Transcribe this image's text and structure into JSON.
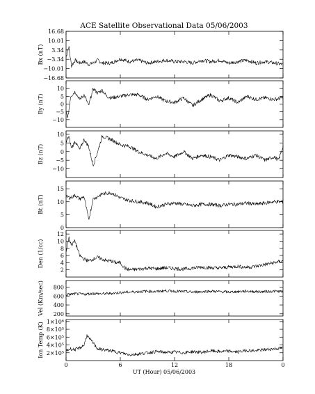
{
  "chart_data": {
    "type": "line",
    "title": "ACE Satellite Observational Data   05/06/2003",
    "xlabel": "UT (Hour)   05/06/2003",
    "x_ticks": [
      "0",
      "6",
      "12",
      "18",
      "0"
    ],
    "xlim": [
      0,
      24
    ],
    "panels": [
      {
        "name": "bx",
        "ylabel": "Bx (nT)",
        "ylim": [
          -16.68,
          16.68
        ],
        "y_ticks": [
          16.68,
          10.01,
          3.34,
          -3.34,
          -10.01,
          -16.68
        ],
        "y_tick_labels": [
          "16.68",
          "10.01",
          "3.34",
          "−3.34",
          "−10.01",
          "−16.68"
        ],
        "series": [
          {
            "x": [
              0,
              0.3,
              0.6,
              1,
              1.5,
              2,
              2.5,
              3,
              3.5,
              4,
              5,
              6,
              7,
              8,
              9,
              10,
              11,
              12,
              13,
              14,
              15,
              16,
              17,
              18,
              19,
              20,
              21,
              22,
              23,
              24
            ],
            "y": [
              -2,
              6,
              -8,
              -4,
              -6,
              -5,
              -7,
              -6,
              -4,
              -6,
              -6,
              -3,
              -5,
              -4,
              -6,
              -5,
              -4,
              -5,
              -5,
              -6,
              -4,
              -5,
              -4,
              -6,
              -5,
              -4,
              -6,
              -5,
              -6,
              -7
            ]
          }
        ]
      },
      {
        "name": "by",
        "ylabel": "By (nT)",
        "ylim": [
          -15,
          15
        ],
        "y_ticks": [
          10,
          5,
          0,
          -5,
          -10
        ],
        "y_tick_labels": [
          "10",
          "5",
          "0",
          "−5",
          "−10"
        ],
        "series": [
          {
            "x": [
              0,
              0.2,
              0.5,
              1,
              1.5,
              2,
              2.5,
              3,
              3.5,
              4,
              4.5,
              5,
              6,
              7,
              8,
              9,
              10,
              11,
              12,
              13,
              14,
              15,
              16,
              17,
              18,
              19,
              20,
              21,
              22,
              23,
              24
            ],
            "y": [
              -5,
              -9,
              5,
              8,
              3,
              6,
              -1,
              10,
              7,
              9,
              5,
              4,
              5,
              6,
              6,
              3,
              5,
              2,
              1,
              4,
              -1,
              3,
              6,
              2,
              4,
              1,
              5,
              3,
              4,
              3,
              4
            ]
          }
        ]
      },
      {
        "name": "bz",
        "ylabel": "Bz (nT)",
        "ylim": [
          -15,
          12
        ],
        "y_ticks": [
          10,
          5,
          0,
          -5,
          -10
        ],
        "y_tick_labels": [
          "10",
          "5",
          "0",
          "−5",
          "−10"
        ],
        "series": [
          {
            "x": [
              0,
              0.3,
              0.6,
              1,
              1.5,
              2,
              2.5,
              3,
              3.5,
              4,
              5,
              6,
              7,
              8,
              9,
              10,
              11,
              12,
              13,
              14,
              15,
              16,
              17,
              18,
              19,
              20,
              21,
              22,
              23,
              23.5,
              24
            ],
            "y": [
              5,
              9,
              2,
              6,
              1,
              7,
              3,
              -8,
              0,
              9,
              7,
              4,
              3,
              0,
              -2,
              -4,
              -1,
              -3,
              0,
              -4,
              -2,
              -3,
              -5,
              -2,
              -3,
              -4,
              -2,
              -5,
              -3,
              -5,
              3
            ]
          }
        ]
      },
      {
        "name": "bt",
        "ylabel": "Bt (nT)",
        "ylim": [
          0,
          18
        ],
        "y_ticks": [
          15,
          10,
          5,
          0
        ],
        "y_tick_labels": [
          "15",
          "10",
          "5",
          "0"
        ],
        "series": [
          {
            "x": [
              0,
              0.5,
              1,
              1.5,
              2,
              2.5,
              3,
              3.5,
              4,
              5,
              6,
              7,
              8,
              9,
              10,
              11,
              12,
              13,
              14,
              15,
              16,
              17,
              18,
              19,
              20,
              21,
              22,
              23,
              24
            ],
            "y": [
              12,
              11.5,
              12.5,
              11,
              12,
              3,
              11,
              12,
              13,
              13.5,
              11.5,
              10.5,
              10,
              9.5,
              8,
              9,
              9.5,
              9,
              8.5,
              9,
              9,
              8.5,
              9,
              9,
              9.5,
              9,
              9.5,
              10,
              10
            ]
          }
        ]
      },
      {
        "name": "den",
        "ylabel": "Den (1/cc)",
        "ylim": [
          0,
          13
        ],
        "y_ticks": [
          12,
          10,
          8,
          6,
          4,
          2
        ],
        "y_tick_labels": [
          "12",
          "10",
          "8",
          "6",
          "4",
          "2"
        ],
        "series": [
          {
            "x": [
              0,
              0.3,
              0.6,
              1,
              1.5,
              2,
              2.5,
              3,
              3.5,
              4,
              4.5,
              5,
              5.5,
              6,
              6.5,
              7,
              8,
              9,
              10,
              11,
              12,
              13,
              14,
              15,
              16,
              17,
              18,
              19,
              20,
              21,
              22,
              23,
              24
            ],
            "y": [
              7,
              11,
              9,
              10,
              6,
              5,
              4.5,
              5,
              5.5,
              5,
              4.5,
              4.5,
              4,
              4,
              2.5,
              2,
              2.2,
              2.5,
              2.3,
              2.6,
              2.4,
              2.2,
              2.5,
              2.8,
              2.6,
              2.5,
              2.8,
              3,
              2.7,
              3,
              3.5,
              4,
              4.5
            ]
          }
        ]
      },
      {
        "name": "vel",
        "ylabel": "Vel (Km/sec)",
        "ylim": [
          150,
          950
        ],
        "y_ticks": [
          800,
          600,
          400,
          200
        ],
        "y_tick_labels": [
          "800",
          "600",
          "400",
          "200"
        ],
        "series": [
          {
            "x": [
              0,
              1,
              2,
              3,
              4,
              5,
              6,
              7,
              8,
              9,
              10,
              11,
              12,
              13,
              14,
              15,
              16,
              17,
              18,
              19,
              20,
              21,
              22,
              23,
              24
            ],
            "y": [
              630,
              650,
              640,
              660,
              650,
              660,
              680,
              690,
              700,
              710,
              700,
              720,
              710,
              700,
              690,
              700,
              710,
              700,
              690,
              700,
              710,
              700,
              700,
              710,
              700
            ]
          }
        ]
      },
      {
        "name": "iontemp",
        "ylabel": "Ion Temp (K)",
        "ylim": [
          0,
          1050000
        ],
        "y_ticks": [
          1000000,
          800000,
          600000,
          400000,
          200000
        ],
        "y_tick_labels": [
          "1×10⁶",
          "8×10⁵",
          "6×10⁵",
          "4×10⁵",
          "2×10⁵"
        ],
        "series": [
          {
            "x": [
              0,
              0.5,
              1,
              1.5,
              2,
              2.3,
              2.6,
              3,
              3.5,
              4,
              5,
              6,
              7,
              8,
              9,
              10,
              11,
              12,
              13,
              14,
              15,
              16,
              17,
              18,
              19,
              20,
              21,
              22,
              23,
              24
            ],
            "y": [
              250000,
              300000,
              280000,
              320000,
              400000,
              650000,
              550000,
              450000,
              300000,
              280000,
              250000,
              200000,
              150000,
              170000,
              200000,
              230000,
              210000,
              220000,
              200000,
              230000,
              210000,
              250000,
              230000,
              240000,
              220000,
              260000,
              250000,
              280000,
              300000,
              320000
            ]
          }
        ]
      }
    ]
  }
}
